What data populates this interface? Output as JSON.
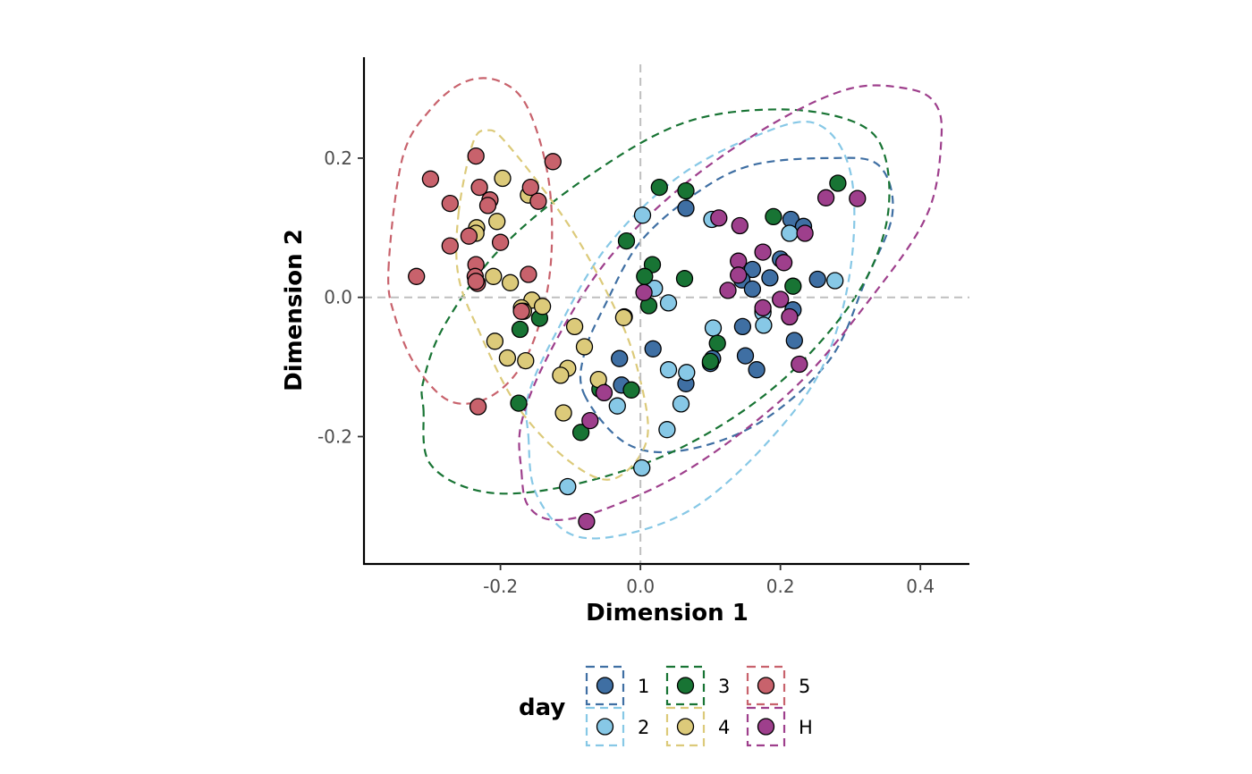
{
  "chart_data": {
    "type": "scatter",
    "title": "",
    "xlabel": "Dimension 1",
    "ylabel": "Dimension 2",
    "xlim": [
      -0.395,
      0.47
    ],
    "ylim": [
      -0.383,
      0.345
    ],
    "xticks": [
      -0.2,
      0.0,
      0.2,
      0.4
    ],
    "xtick_labels": [
      "-0.2",
      "0.0",
      "0.2",
      "0.4"
    ],
    "yticks": [
      -0.2,
      0.0,
      0.2
    ],
    "ytick_labels": [
      "-0.2",
      "0.0",
      "0.2"
    ],
    "reference_lines": {
      "x": 0,
      "y": 0,
      "style": "dashed",
      "color": "#bfbfbf"
    },
    "grid": false,
    "legend": {
      "title": "day",
      "position": "bottom",
      "entries": [
        "1",
        "2",
        "3",
        "4",
        "5",
        "H"
      ]
    },
    "ellipse_style": "dashed",
    "series": [
      {
        "name": "1",
        "color": "#3f6fa3",
        "ellipse": [
          [
            -0.08,
            -0.14
          ],
          [
            -0.02,
            -0.21
          ],
          [
            0.06,
            -0.22
          ],
          [
            0.17,
            -0.18
          ],
          [
            0.27,
            -0.09
          ],
          [
            0.32,
            0.02
          ],
          [
            0.36,
            0.12
          ],
          [
            0.34,
            0.19
          ],
          [
            0.27,
            0.2
          ],
          [
            0.16,
            0.19
          ],
          [
            0.08,
            0.15
          ],
          [
            0.0,
            0.08
          ],
          [
            -0.05,
            -0.01
          ],
          [
            -0.08,
            -0.08
          ]
        ],
        "points": [
          [
            0.065,
            0.128
          ],
          [
            0.215,
            0.112
          ],
          [
            0.233,
            0.102
          ],
          [
            0.2,
            0.055
          ],
          [
            0.16,
            0.04
          ],
          [
            0.185,
            0.028
          ],
          [
            0.145,
            0.025
          ],
          [
            0.16,
            0.012
          ],
          [
            0.253,
            0.026
          ],
          [
            0.218,
            -0.018
          ],
          [
            0.22,
            -0.062
          ],
          [
            0.146,
            -0.042
          ],
          [
            0.175,
            -0.02
          ],
          [
            0.018,
            -0.074
          ],
          [
            -0.03,
            -0.088
          ],
          [
            0.103,
            -0.088
          ],
          [
            0.15,
            -0.084
          ],
          [
            0.166,
            -0.104
          ],
          [
            0.065,
            -0.124
          ],
          [
            -0.027,
            -0.126
          ],
          [
            0.1,
            -0.095
          ]
        ]
      },
      {
        "name": "2",
        "color": "#87c8e6",
        "ellipse": [
          [
            -0.16,
            -0.2
          ],
          [
            -0.15,
            -0.28
          ],
          [
            -0.1,
            -0.34
          ],
          [
            -0.02,
            -0.34
          ],
          [
            0.08,
            -0.3
          ],
          [
            0.18,
            -0.21
          ],
          [
            0.26,
            -0.1
          ],
          [
            0.3,
            0.04
          ],
          [
            0.3,
            0.18
          ],
          [
            0.25,
            0.25
          ],
          [
            0.16,
            0.23
          ],
          [
            0.05,
            0.17
          ],
          [
            -0.05,
            0.07
          ],
          [
            -0.12,
            -0.05
          ],
          [
            -0.16,
            -0.14
          ]
        ],
        "points": [
          [
            0.003,
            0.118
          ],
          [
            0.102,
            0.112
          ],
          [
            0.213,
            0.092
          ],
          [
            0.278,
            0.024
          ],
          [
            0.02,
            0.013
          ],
          [
            0.04,
            -0.008
          ],
          [
            0.175,
            -0.022
          ],
          [
            0.104,
            -0.044
          ],
          [
            0.176,
            -0.04
          ],
          [
            0.04,
            -0.104
          ],
          [
            0.066,
            -0.108
          ],
          [
            -0.033,
            -0.156
          ],
          [
            0.058,
            -0.153
          ],
          [
            0.038,
            -0.19
          ],
          [
            0.002,
            -0.245
          ],
          [
            -0.104,
            -0.272
          ]
        ]
      },
      {
        "name": "3",
        "color": "#187434",
        "ellipse": [
          [
            -0.31,
            -0.16
          ],
          [
            -0.3,
            -0.24
          ],
          [
            -0.22,
            -0.28
          ],
          [
            -0.1,
            -0.27
          ],
          [
            0.05,
            -0.22
          ],
          [
            0.19,
            -0.13
          ],
          [
            0.3,
            -0.01
          ],
          [
            0.35,
            0.1
          ],
          [
            0.35,
            0.2
          ],
          [
            0.31,
            0.25
          ],
          [
            0.2,
            0.27
          ],
          [
            0.06,
            0.25
          ],
          [
            -0.08,
            0.17
          ],
          [
            -0.2,
            0.07
          ],
          [
            -0.28,
            -0.04
          ],
          [
            -0.31,
            -0.12
          ]
        ],
        "points": [
          [
            0.027,
            0.158
          ],
          [
            0.065,
            0.153
          ],
          [
            0.282,
            0.164
          ],
          [
            0.19,
            0.116
          ],
          [
            -0.02,
            0.081
          ],
          [
            0.017,
            0.047
          ],
          [
            0.006,
            0.03
          ],
          [
            0.063,
            0.027
          ],
          [
            0.218,
            0.016
          ],
          [
            0.012,
            -0.012
          ],
          [
            -0.023,
            -0.028
          ],
          [
            -0.144,
            -0.03
          ],
          [
            -0.172,
            -0.046
          ],
          [
            0.11,
            -0.066
          ],
          [
            0.1,
            -0.092
          ],
          [
            -0.013,
            -0.133
          ],
          [
            -0.058,
            -0.132
          ],
          [
            -0.174,
            -0.152
          ],
          [
            -0.085,
            -0.194
          ]
        ]
      },
      {
        "name": "4",
        "color": "#dcca7a",
        "ellipse": [
          [
            -0.26,
            0.12
          ],
          [
            -0.24,
            0.22
          ],
          [
            -0.22,
            0.24
          ],
          [
            -0.19,
            0.22
          ],
          [
            -0.1,
            0.1
          ],
          [
            -0.03,
            -0.03
          ],
          [
            0.0,
            -0.12
          ],
          [
            0.01,
            -0.2
          ],
          [
            -0.02,
            -0.25
          ],
          [
            -0.06,
            -0.26
          ],
          [
            -0.12,
            -0.22
          ],
          [
            -0.18,
            -0.15
          ],
          [
            -0.23,
            -0.05
          ],
          [
            -0.26,
            0.03
          ]
        ],
        "points": [
          [
            -0.197,
            0.171
          ],
          [
            -0.16,
            0.147
          ],
          [
            -0.234,
            0.1
          ],
          [
            -0.205,
            0.109
          ],
          [
            -0.235,
            0.092
          ],
          [
            -0.21,
            0.03
          ],
          [
            -0.186,
            0.021
          ],
          [
            -0.155,
            -0.004
          ],
          [
            -0.14,
            -0.013
          ],
          [
            -0.17,
            -0.015
          ],
          [
            -0.167,
            -0.02
          ],
          [
            -0.024,
            -0.029
          ],
          [
            -0.094,
            -0.042
          ],
          [
            -0.208,
            -0.063
          ],
          [
            -0.08,
            -0.071
          ],
          [
            -0.19,
            -0.087
          ],
          [
            -0.164,
            -0.091
          ],
          [
            -0.104,
            -0.102
          ],
          [
            -0.114,
            -0.112
          ],
          [
            -0.06,
            -0.118
          ],
          [
            -0.11,
            -0.166
          ]
        ]
      },
      {
        "name": "5",
        "color": "#c8626c",
        "ellipse": [
          [
            -0.36,
            0.04
          ],
          [
            -0.34,
            0.2
          ],
          [
            -0.3,
            0.27
          ],
          [
            -0.25,
            0.31
          ],
          [
            -0.2,
            0.31
          ],
          [
            -0.16,
            0.27
          ],
          [
            -0.13,
            0.16
          ],
          [
            -0.13,
            0.03
          ],
          [
            -0.16,
            -0.08
          ],
          [
            -0.21,
            -0.14
          ],
          [
            -0.27,
            -0.15
          ],
          [
            -0.32,
            -0.1
          ],
          [
            -0.35,
            -0.03
          ]
        ],
        "points": [
          [
            -0.235,
            0.203
          ],
          [
            -0.125,
            0.195
          ],
          [
            -0.3,
            0.17
          ],
          [
            -0.157,
            0.158
          ],
          [
            -0.23,
            0.158
          ],
          [
            -0.215,
            0.14
          ],
          [
            -0.146,
            0.138
          ],
          [
            -0.272,
            0.135
          ],
          [
            -0.218,
            0.132
          ],
          [
            -0.245,
            0.088
          ],
          [
            -0.2,
            0.079
          ],
          [
            -0.272,
            0.074
          ],
          [
            -0.235,
            0.047
          ],
          [
            -0.236,
            0.03
          ],
          [
            -0.16,
            0.033
          ],
          [
            -0.233,
            0.02
          ],
          [
            -0.235,
            0.023
          ],
          [
            -0.32,
            0.03
          ],
          [
            -0.17,
            -0.02
          ],
          [
            -0.232,
            -0.157
          ]
        ]
      },
      {
        "name": "H",
        "color": "#9e3f8c",
        "ellipse": [
          [
            -0.17,
            -0.25
          ],
          [
            -0.16,
            -0.3
          ],
          [
            -0.12,
            -0.32
          ],
          [
            -0.04,
            -0.3
          ],
          [
            0.08,
            -0.24
          ],
          [
            0.22,
            -0.13
          ],
          [
            0.33,
            0.0
          ],
          [
            0.41,
            0.12
          ],
          [
            0.43,
            0.23
          ],
          [
            0.42,
            0.28
          ],
          [
            0.38,
            0.3
          ],
          [
            0.3,
            0.3
          ],
          [
            0.19,
            0.25
          ],
          [
            0.06,
            0.16
          ],
          [
            -0.05,
            0.05
          ],
          [
            -0.13,
            -0.08
          ],
          [
            -0.17,
            -0.18
          ]
        ],
        "points": [
          [
            0.265,
            0.143
          ],
          [
            0.31,
            0.142
          ],
          [
            0.112,
            0.114
          ],
          [
            0.142,
            0.103
          ],
          [
            0.235,
            0.092
          ],
          [
            0.175,
            0.065
          ],
          [
            0.14,
            0.052
          ],
          [
            0.205,
            0.05
          ],
          [
            0.14,
            0.032
          ],
          [
            0.125,
            0.01
          ],
          [
            0.005,
            0.007
          ],
          [
            0.2,
            -0.003
          ],
          [
            0.175,
            -0.015
          ],
          [
            0.213,
            -0.028
          ],
          [
            0.227,
            -0.096
          ],
          [
            -0.052,
            -0.137
          ],
          [
            -0.072,
            -0.177
          ],
          [
            -0.077,
            -0.322
          ]
        ]
      }
    ]
  }
}
